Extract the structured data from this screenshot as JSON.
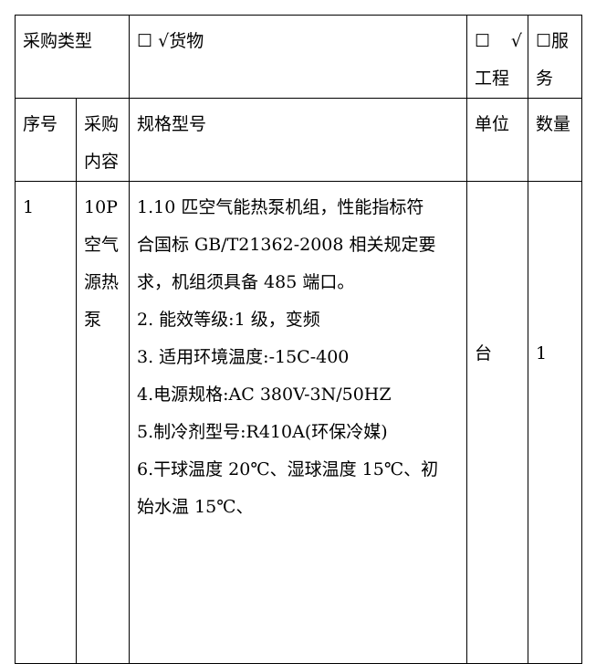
{
  "header_row": {
    "type_label": "采购类型",
    "goods": {
      "box": "☐",
      "check": "√",
      "label": "货物"
    },
    "works": {
      "box": "☐",
      "check": "√",
      "label": "工程"
    },
    "services": {
      "box": "☐",
      "label": "服务"
    }
  },
  "columns": {
    "index": "序号",
    "content": "采购内容",
    "spec": "规格型号",
    "unit": "单位",
    "quantity": "数量"
  },
  "rows": [
    {
      "index": "1",
      "content": "10P空气源热泵",
      "spec_lines": [
        "1.10 匹空气能热泵机组，性能指标符",
        "合国标 GB/T21362-2008 相关规定要",
        "求，机组须具备 485 端口。",
        "2.  能效等级:1 级，变频",
        "3.  适用环境温度:-15C-400",
        "4.电源规格:AC  380V-3N/50HZ",
        "5.制冷剂型号:R410A(环保冷媒)",
        "6.干球温度 20℃、湿球温度 15℃、初",
        "始水温 15℃、"
      ],
      "unit": "台",
      "quantity": "1"
    }
  ]
}
